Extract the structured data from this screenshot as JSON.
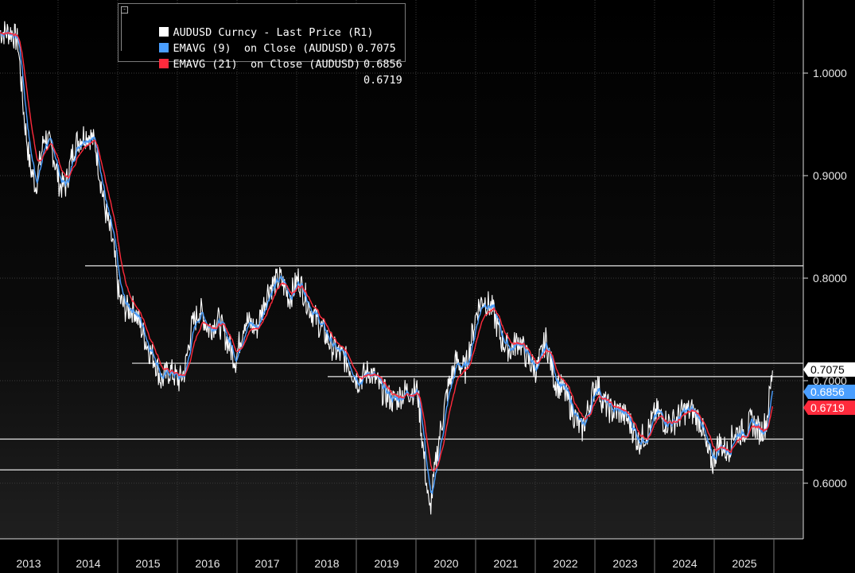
{
  "chart_data": {
    "type": "line",
    "ylim": [
      0.55,
      1.07
    ],
    "yticks": [
      "0.6000",
      "0.7000",
      "0.8000",
      "0.9000",
      "1.0000"
    ],
    "ytick_values": [
      0.6,
      0.7,
      0.8,
      0.9,
      1.0
    ],
    "xticks": [
      "2013",
      "2014",
      "2015",
      "2016",
      "2017",
      "2018",
      "2019",
      "2020",
      "2021",
      "2022",
      "2023",
      "2024",
      "2025"
    ],
    "xlim": [
      2013.0,
      2025.95
    ],
    "grid": true,
    "legend": "top-left",
    "series": [
      {
        "name": "AUDUSD Curncy - Last Price (R1)",
        "last_value": "0.7075",
        "color": "#ffffff",
        "x": [
          2013.0,
          2013.2,
          2013.3,
          2013.4,
          2013.5,
          2013.6,
          2013.75,
          2013.9,
          2014.0,
          2014.1,
          2014.25,
          2014.4,
          2014.5,
          2014.6,
          2014.75,
          2014.9,
          2015.0,
          2015.1,
          2015.25,
          2015.5,
          2015.6,
          2015.7,
          2015.85,
          2016.0,
          2016.1,
          2016.2,
          2016.35,
          2016.5,
          2016.65,
          2016.8,
          2016.95,
          2017.1,
          2017.3,
          2017.5,
          2017.7,
          2017.85,
          2018.0,
          2018.2,
          2018.4,
          2018.6,
          2018.8,
          2019.0,
          2019.2,
          2019.4,
          2019.6,
          2019.8,
          2020.0,
          2020.15,
          2020.2,
          2020.35,
          2020.5,
          2020.65,
          2020.8,
          2021.0,
          2021.1,
          2021.25,
          2021.4,
          2021.55,
          2021.7,
          2021.85,
          2022.0,
          2022.15,
          2022.3,
          2022.45,
          2022.6,
          2022.75,
          2022.85,
          2023.0,
          2023.1,
          2023.25,
          2023.4,
          2023.55,
          2023.7,
          2023.85,
          2024.0,
          2024.15,
          2024.3,
          2024.45,
          2024.6,
          2024.75,
          2024.85,
          2024.95,
          2025.05,
          2025.2,
          2025.3,
          2025.45,
          2025.6,
          2025.75,
          2025.85,
          2025.95
        ],
        "values": [
          1.04,
          1.04,
          1.03,
          0.96,
          0.91,
          0.89,
          0.94,
          0.92,
          0.89,
          0.89,
          0.93,
          0.94,
          0.94,
          0.93,
          0.87,
          0.83,
          0.78,
          0.77,
          0.77,
          0.73,
          0.72,
          0.7,
          0.71,
          0.7,
          0.71,
          0.75,
          0.77,
          0.75,
          0.76,
          0.74,
          0.72,
          0.76,
          0.75,
          0.79,
          0.8,
          0.78,
          0.8,
          0.77,
          0.75,
          0.73,
          0.72,
          0.7,
          0.71,
          0.69,
          0.68,
          0.69,
          0.69,
          0.6,
          0.57,
          0.64,
          0.69,
          0.72,
          0.71,
          0.77,
          0.78,
          0.77,
          0.74,
          0.73,
          0.74,
          0.72,
          0.71,
          0.74,
          0.7,
          0.69,
          0.67,
          0.65,
          0.67,
          0.7,
          0.68,
          0.67,
          0.67,
          0.66,
          0.64,
          0.65,
          0.67,
          0.66,
          0.66,
          0.67,
          0.67,
          0.66,
          0.63,
          0.62,
          0.64,
          0.63,
          0.65,
          0.65,
          0.66,
          0.65,
          0.66,
          0.71
        ]
      },
      {
        "name": "EMAVG (9)  on Close (AUDUSD)",
        "last_value": "0.6856",
        "color": "#4a9eff"
      },
      {
        "name": "EMAVG (21)  on Close (AUDUSD)",
        "last_value": "0.6719",
        "color": "#ff2a3c"
      }
    ],
    "horizontal_lines": [
      0.812,
      0.717,
      0.704,
      0.643,
      0.613
    ]
  },
  "legend": {
    "row1_label": "AUDUSD Curncy - Last Price (R1)",
    "row1_value": "0.7075",
    "row2_label": "EMAVG (9)  on Close (AUDUSD)",
    "row2_value": "0.6856",
    "row3_label": "EMAVG (21)  on Close (AUDUSD)",
    "row3_value": "0.6719"
  },
  "labels": {
    "last_price": "0.7075",
    "ema9": "0.6856",
    "ema21": "0.6719"
  },
  "colors": {
    "background": "#000000",
    "price": "#ffffff",
    "ema9": "#4a9eff",
    "ema21": "#ff2a3c",
    "grid": "#3c3c3c"
  }
}
